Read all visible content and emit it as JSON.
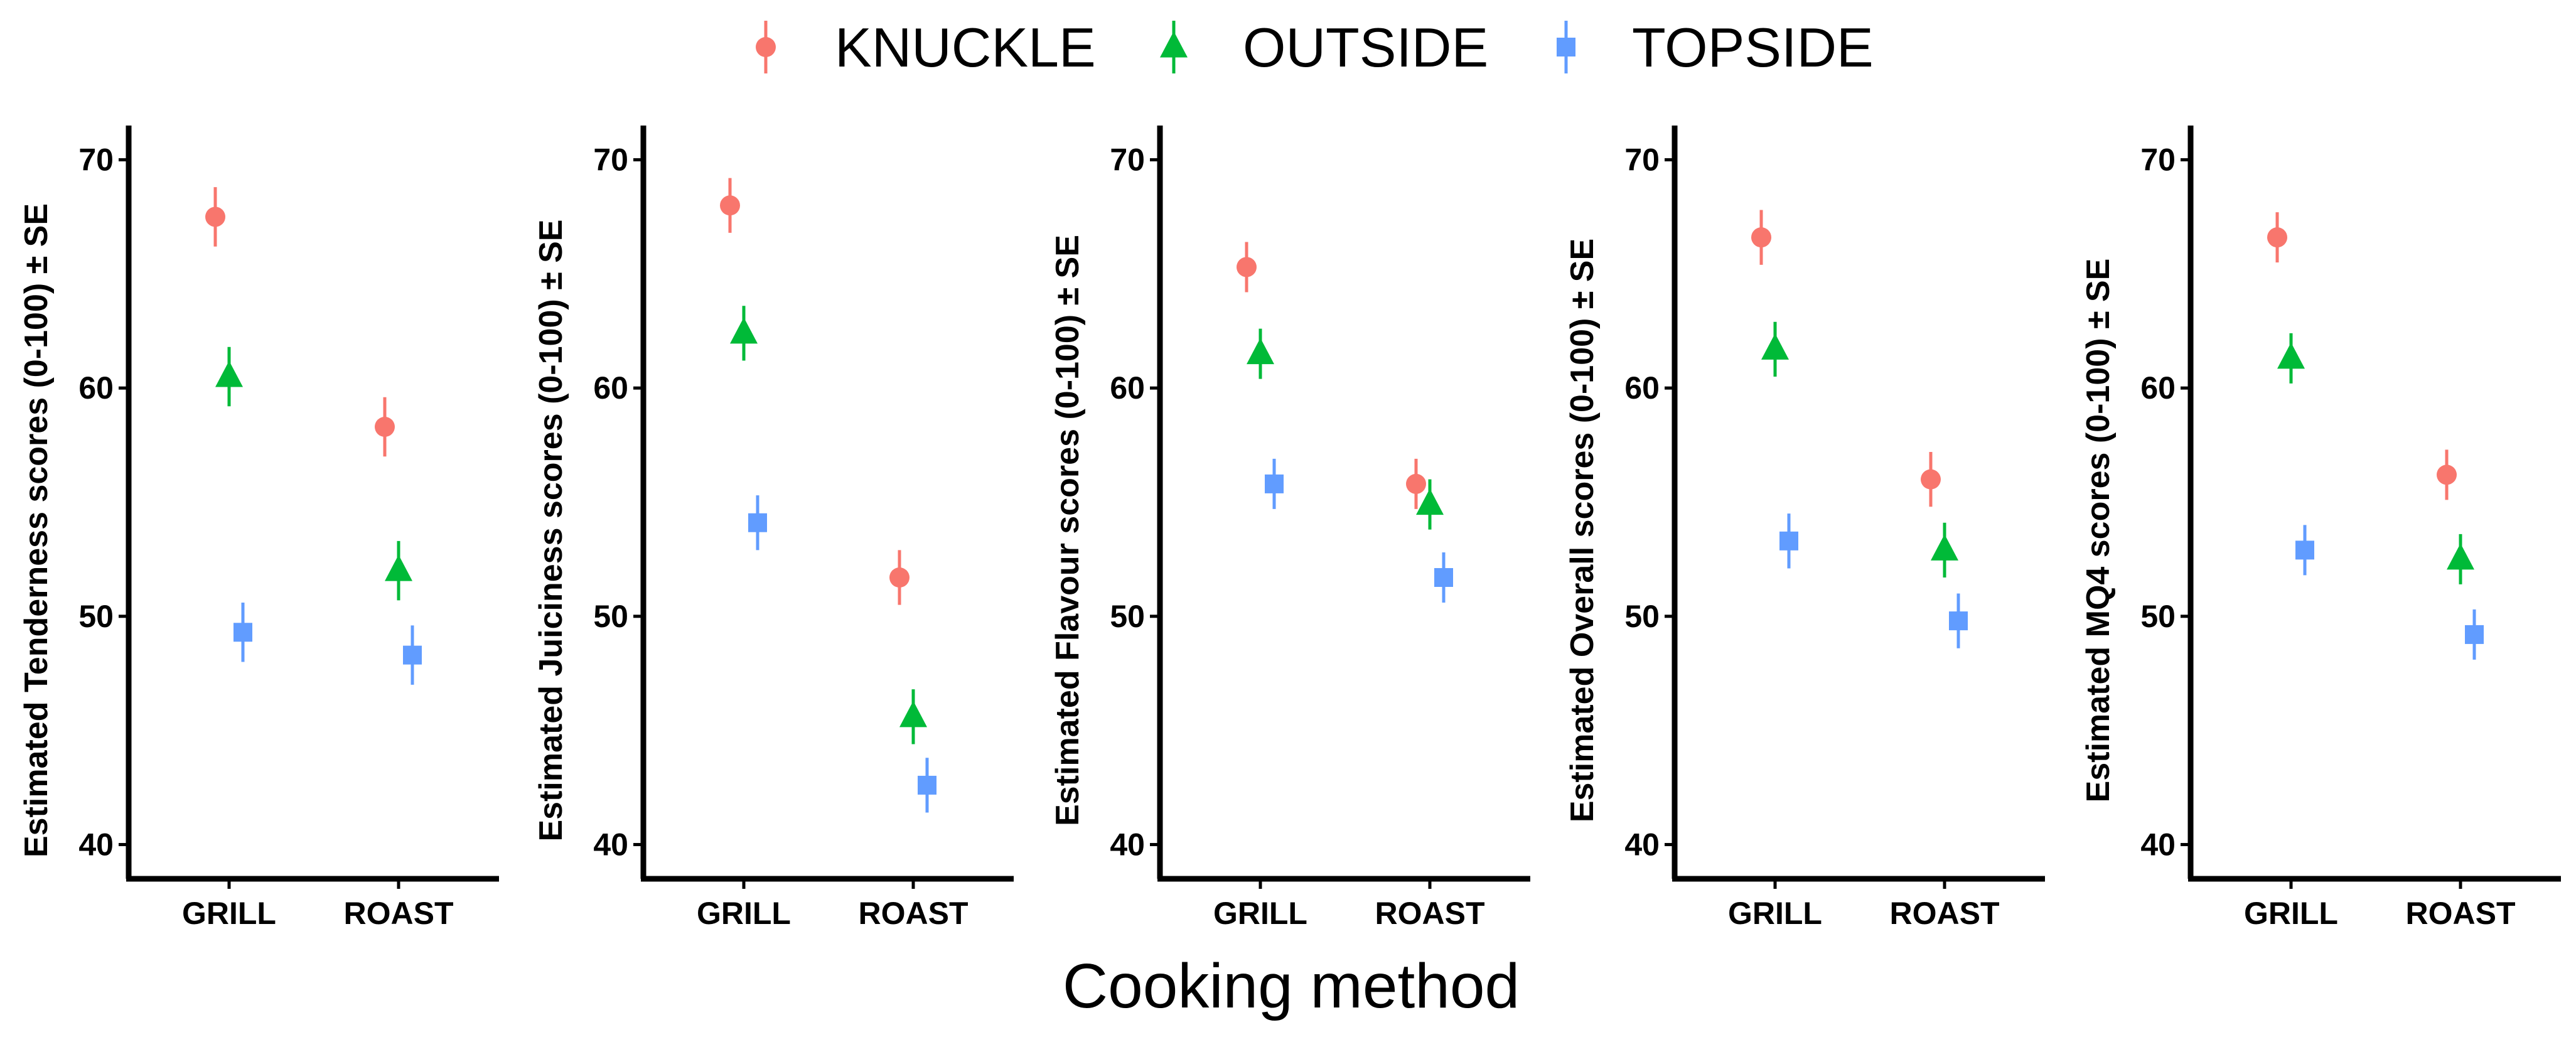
{
  "legend": [
    {
      "name": "KNUCKLE",
      "color": "#F8766D",
      "shape": "circle"
    },
    {
      "name": "OUTSIDE",
      "color": "#00BA38",
      "shape": "triangle"
    },
    {
      "name": "TOPSIDE",
      "color": "#619CFF",
      "shape": "square"
    }
  ],
  "x_axis_title": "Cooking method",
  "chart_data": [
    {
      "type": "scatter",
      "title": "",
      "ylabel": "Estimated Tenderness scores (0-100) ± SE",
      "xlabel": "Cooking method",
      "categories": [
        "GRILL",
        "ROAST"
      ],
      "ylim": [
        38.5,
        71.5
      ],
      "yticks": [
        40,
        50,
        60,
        70
      ],
      "series": [
        {
          "name": "KNUCKLE",
          "values": [
            67.5,
            58.3
          ],
          "se": [
            1.3,
            1.3
          ]
        },
        {
          "name": "OUTSIDE",
          "values": [
            60.5,
            52.0
          ],
          "se": [
            1.3,
            1.3
          ]
        },
        {
          "name": "TOPSIDE",
          "values": [
            49.3,
            48.3
          ],
          "se": [
            1.3,
            1.3
          ]
        }
      ]
    },
    {
      "type": "scatter",
      "title": "",
      "ylabel": "Estimated Juiciness scores (0-100) ± SE",
      "xlabel": "Cooking method",
      "categories": [
        "GRILL",
        "ROAST"
      ],
      "ylim": [
        38.5,
        71.5
      ],
      "yticks": [
        40,
        50,
        60,
        70
      ],
      "series": [
        {
          "name": "KNUCKLE",
          "values": [
            68.0,
            51.7
          ],
          "se": [
            1.2,
            1.2
          ]
        },
        {
          "name": "OUTSIDE",
          "values": [
            62.4,
            45.6
          ],
          "se": [
            1.2,
            1.2
          ]
        },
        {
          "name": "TOPSIDE",
          "values": [
            54.1,
            42.6
          ],
          "se": [
            1.2,
            1.2
          ]
        }
      ]
    },
    {
      "type": "scatter",
      "title": "",
      "ylabel": "Estimated Flavour scores (0-100) ± SE",
      "xlabel": "Cooking method",
      "categories": [
        "GRILL",
        "ROAST"
      ],
      "ylim": [
        38.5,
        71.5
      ],
      "yticks": [
        40,
        50,
        60,
        70
      ],
      "series": [
        {
          "name": "KNUCKLE",
          "values": [
            65.3,
            55.8
          ],
          "se": [
            1.1,
            1.1
          ]
        },
        {
          "name": "OUTSIDE",
          "values": [
            61.5,
            54.9
          ],
          "se": [
            1.1,
            1.1
          ]
        },
        {
          "name": "TOPSIDE",
          "values": [
            55.8,
            51.7
          ],
          "se": [
            1.1,
            1.1
          ]
        }
      ]
    },
    {
      "type": "scatter",
      "title": "",
      "ylabel": "Estimated Overall scores (0-100) ± SE",
      "xlabel": "Cooking method",
      "categories": [
        "GRILL",
        "ROAST"
      ],
      "ylim": [
        38.5,
        71.5
      ],
      "yticks": [
        40,
        50,
        60,
        70
      ],
      "series": [
        {
          "name": "KNUCKLE",
          "values": [
            66.6,
            56.0
          ],
          "se": [
            1.2,
            1.2
          ]
        },
        {
          "name": "OUTSIDE",
          "values": [
            61.7,
            52.9
          ],
          "se": [
            1.2,
            1.2
          ]
        },
        {
          "name": "TOPSIDE",
          "values": [
            53.3,
            49.8
          ],
          "se": [
            1.2,
            1.2
          ]
        }
      ]
    },
    {
      "type": "scatter",
      "title": "",
      "ylabel": "Estimated MQ4 scores (0-100) ± SE",
      "xlabel": "Cooking method",
      "categories": [
        "GRILL",
        "ROAST"
      ],
      "ylim": [
        38.5,
        71.5
      ],
      "yticks": [
        40,
        50,
        60,
        70
      ],
      "series": [
        {
          "name": "KNUCKLE",
          "values": [
            66.6,
            56.2
          ],
          "se": [
            1.1,
            1.1
          ]
        },
        {
          "name": "OUTSIDE",
          "values": [
            61.3,
            52.5
          ],
          "se": [
            1.1,
            1.1
          ]
        },
        {
          "name": "TOPSIDE",
          "values": [
            52.9,
            49.2
          ],
          "se": [
            1.1,
            1.1
          ]
        }
      ]
    }
  ]
}
